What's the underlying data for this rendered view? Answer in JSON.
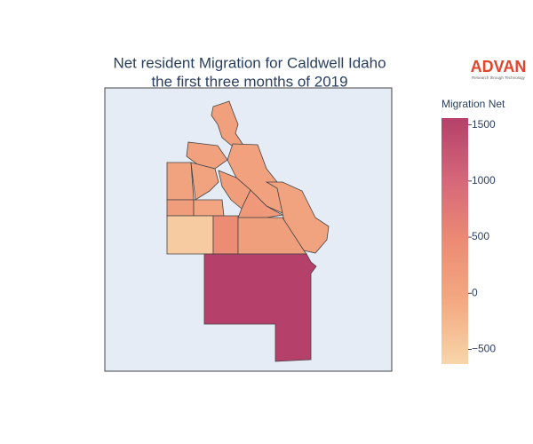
{
  "chart_data": {
    "type": "choropleth",
    "title": [
      "Net resident Migration for Caldwell Idaho",
      "the first three months of 2019"
    ],
    "colorbar_title": "Migration Net",
    "zlim": [
      -630,
      1560
    ],
    "zticks": [
      {
        "value": -500,
        "label": "−500"
      },
      0,
      500,
      1000,
      1500
    ],
    "colorscale": [
      "#f8d5aa",
      "#f3aa82",
      "#ec8b74",
      "#d5677a",
      "#b5406a"
    ],
    "values": [
      100,
      80,
      80,
      60,
      50,
      150,
      220,
      60,
      150,
      0,
      -500,
      450,
      120,
      1560
    ],
    "logo": {
      "name": "ADVAN",
      "tagline": "Research through Technology"
    }
  }
}
